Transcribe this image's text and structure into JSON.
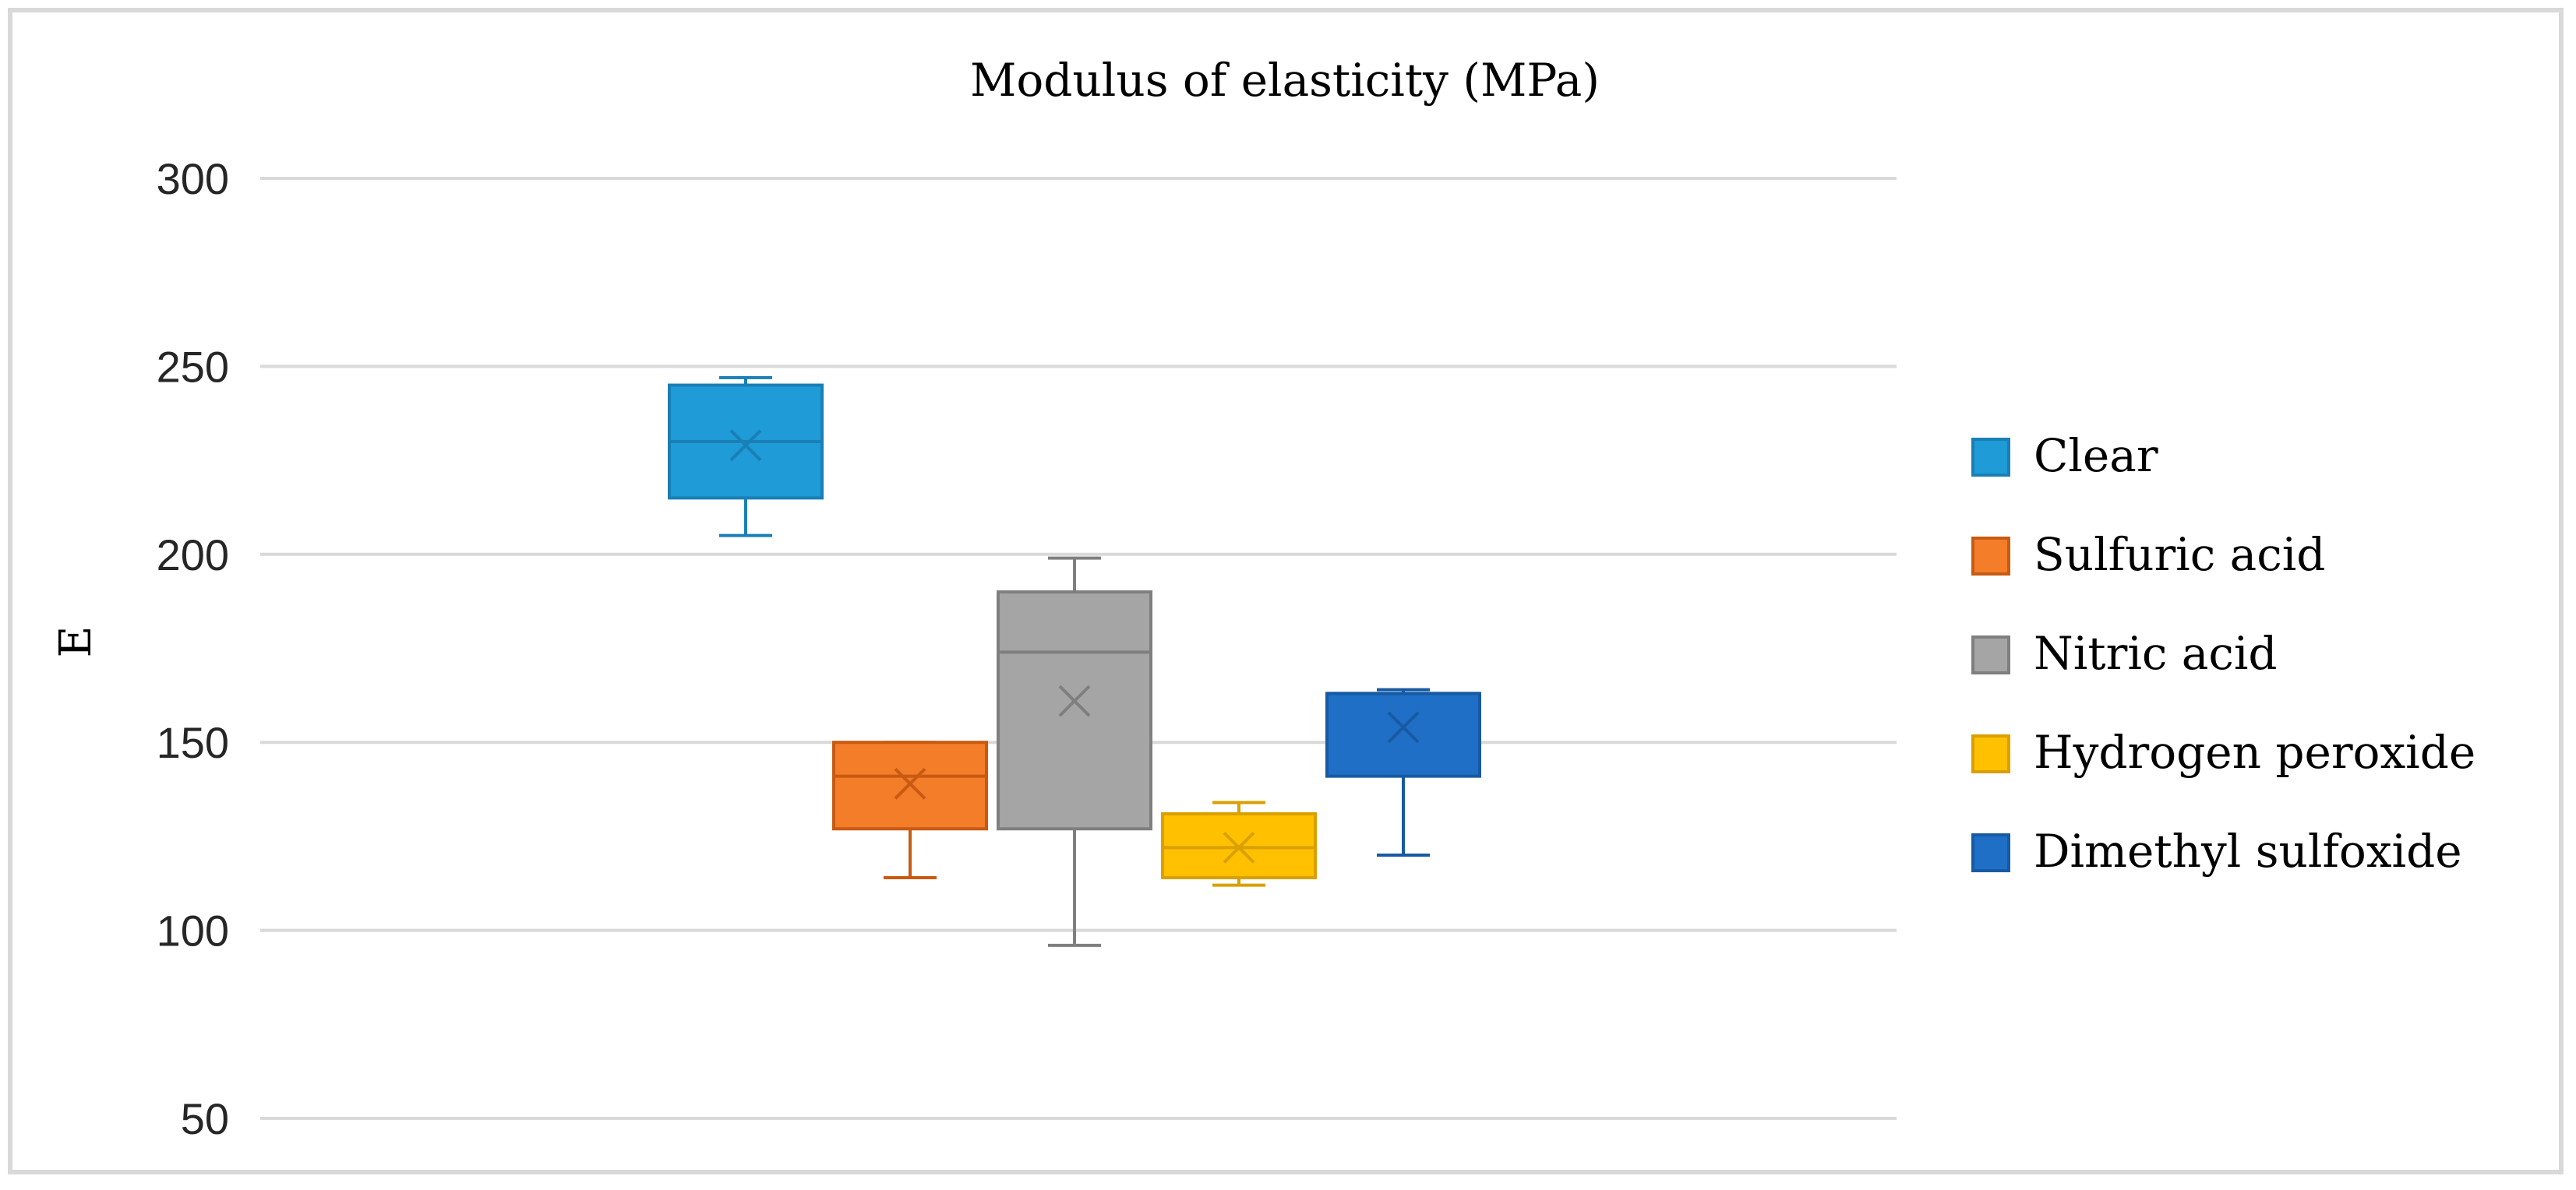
{
  "chart_data": {
    "type": "box",
    "title": "Modulus of elasticity (MPa)",
    "xlabel": "",
    "ylabel": "E",
    "ylim": [
      50,
      300
    ],
    "yticks": [
      50,
      100,
      150,
      200,
      250,
      300
    ],
    "grid": true,
    "legend_position": "right",
    "series": [
      {
        "name": "Clear",
        "color": "#1f9bd7",
        "edge": "#1a7fb5",
        "min": 205,
        "q1": 215,
        "median": 230,
        "q3": 245,
        "max": 247,
        "mean": 229
      },
      {
        "name": "Sulfuric acid",
        "color": "#f47d2a",
        "edge": "#c85a12",
        "min": 114,
        "q1": 127,
        "median": 141,
        "q3": 150,
        "max": 150,
        "mean": 139
      },
      {
        "name": "Nitric acid",
        "color": "#a5a5a5",
        "edge": "#7f7f7f",
        "min": 96,
        "q1": 127,
        "median": 174,
        "q3": 190,
        "max": 199,
        "mean": 161
      },
      {
        "name": "Hydrogen peroxide",
        "color": "#ffc000",
        "edge": "#d9a000",
        "min": 112,
        "q1": 114,
        "median": 122,
        "q3": 131,
        "max": 134,
        "mean": 122
      },
      {
        "name": "Dimethyl sulfoxide",
        "color": "#1f6fc6",
        "edge": "#175aa3",
        "min": 120,
        "q1": 141,
        "median": 163,
        "q3": 163,
        "max": 164,
        "mean": 154
      }
    ]
  }
}
